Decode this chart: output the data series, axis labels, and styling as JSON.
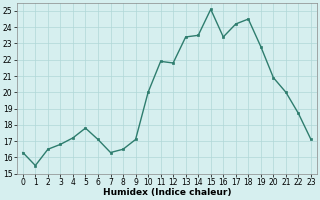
{
  "x": [
    0,
    1,
    2,
    3,
    4,
    5,
    6,
    7,
    8,
    9,
    10,
    11,
    12,
    13,
    14,
    15,
    16,
    17,
    18,
    19,
    20,
    21,
    22,
    23
  ],
  "y": [
    16.3,
    15.5,
    16.5,
    16.8,
    17.2,
    17.8,
    17.1,
    16.3,
    16.5,
    17.1,
    20.0,
    21.9,
    21.8,
    23.4,
    23.5,
    25.1,
    23.4,
    24.2,
    24.5,
    22.8,
    20.9,
    20.0,
    18.7,
    17.1
  ],
  "line_color": "#2e7d6e",
  "marker_color": "#2e7d6e",
  "bg_color": "#d6efef",
  "grid_color": "#b0d8d8",
  "xlabel": "Humidex (Indice chaleur)",
  "xlim": [
    -0.5,
    23.5
  ],
  "ylim": [
    15,
    25.5
  ],
  "yticks": [
    15,
    16,
    17,
    18,
    19,
    20,
    21,
    22,
    23,
    24,
    25
  ],
  "xticks": [
    0,
    1,
    2,
    3,
    4,
    5,
    6,
    7,
    8,
    9,
    10,
    11,
    12,
    13,
    14,
    15,
    16,
    17,
    18,
    19,
    20,
    21,
    22,
    23
  ],
  "xlabel_fontsize": 6.5,
  "tick_fontsize": 5.5,
  "linewidth": 1.0,
  "markersize": 2.0
}
